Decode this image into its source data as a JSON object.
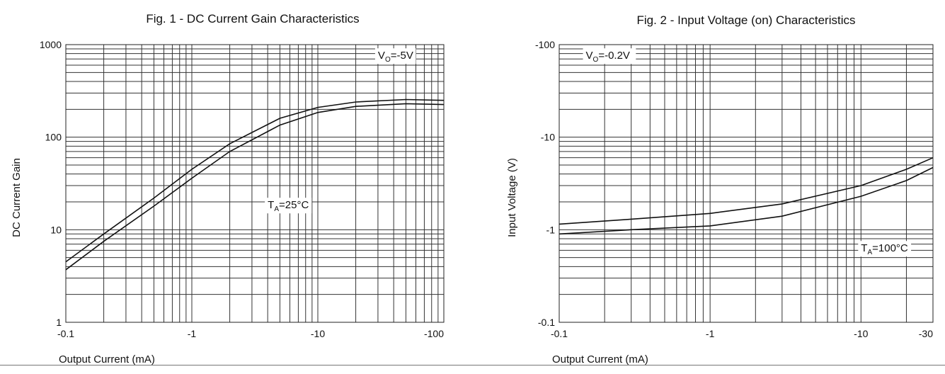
{
  "chart_data": [
    {
      "type": "line",
      "title": "Fig. 1 - DC Current Gain Characteristics",
      "xlabel": "Output Current (mA)",
      "ylabel": "DC Current Gain",
      "x_scale": "log",
      "y_scale": "log",
      "xlim": [
        0.1,
        100
      ],
      "ylim": [
        1,
        1000
      ],
      "x_ticks": [
        "-0.1",
        "-1",
        "-10",
        "-100"
      ],
      "y_ticks": [
        "1",
        "10",
        "100",
        "1000"
      ],
      "annotations": [
        {
          "text": "VO=-5V",
          "x": 30,
          "y": 700
        },
        {
          "text": "TA=25°C",
          "x": 4,
          "y": 17
        }
      ],
      "series": [
        {
          "x": [
            0.1,
            0.2,
            0.5,
            1,
            2,
            5,
            10,
            20,
            50,
            100
          ],
          "y": [
            4.5,
            9,
            22,
            45,
            85,
            160,
            210,
            240,
            255,
            250
          ]
        },
        {
          "x": [
            0.1,
            0.2,
            0.5,
            1,
            2,
            5,
            10,
            20,
            50,
            100
          ],
          "y": [
            3.7,
            7.5,
            18,
            36,
            70,
            135,
            185,
            215,
            230,
            225
          ]
        }
      ]
    },
    {
      "type": "line",
      "title": "Fig. 2 - Input Voltage (on) Characteristics",
      "xlabel": "Output Current (mA)",
      "ylabel": "Input Voltage (V)",
      "x_scale": "log",
      "y_scale": "log",
      "xlim": [
        0.1,
        30
      ],
      "ylim": [
        0.1,
        100
      ],
      "x_ticks": [
        "-0.1",
        "-1",
        "-10",
        "-30"
      ],
      "y_ticks": [
        "-0.1",
        "-1",
        "-10",
        "-100"
      ],
      "annotations": [
        {
          "text": "VO=-0.2V",
          "x": 0.15,
          "y": 70
        },
        {
          "text": "TA=100°C",
          "x": 10,
          "y": 0.58
        }
      ],
      "series": [
        {
          "x": [
            0.1,
            0.3,
            1,
            3,
            10,
            20,
            30
          ],
          "y": [
            1.15,
            1.3,
            1.5,
            1.9,
            3.0,
            4.5,
            6.0
          ]
        },
        {
          "x": [
            0.1,
            0.3,
            1,
            3,
            10,
            20,
            30
          ],
          "y": [
            0.9,
            1.0,
            1.1,
            1.4,
            2.3,
            3.4,
            4.7
          ]
        }
      ]
    }
  ]
}
